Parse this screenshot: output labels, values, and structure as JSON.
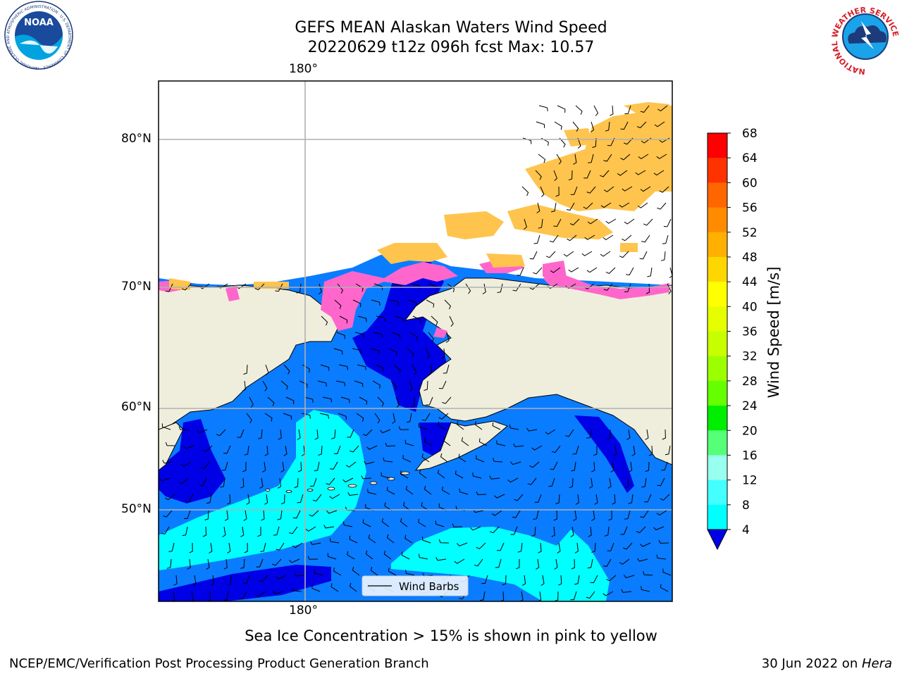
{
  "header": {
    "title_line1": "GEFS MEAN Alaskan Waters Wind Speed",
    "title_line2": "20220629 t12z 096h fcst   Max: 10.57"
  },
  "logos": {
    "left": {
      "name": "noaa-logo",
      "text": "NOAA",
      "ring_text": "NATIONAL OCEANIC AND ATMOSPHERIC ADMINISTRATION · U.S. DEPARTMENT OF COMMERCE"
    },
    "right": {
      "name": "nws-logo",
      "ring_text": "NATIONAL WEATHER SERVICE"
    }
  },
  "map": {
    "lon_labels": [
      "180°"
    ],
    "lat_labels": [
      "80°N",
      "70°N",
      "60°N",
      "50°N"
    ],
    "legend_label": "Wind Barbs",
    "colors": {
      "land": "#efeedc",
      "ocean_4_8": "#0a7cff",
      "ocean_lt4": "#0000e6",
      "ocean_8_12": "#00ffff",
      "ice_pink": "#ff66cc",
      "ice_orange": "#ffc44d",
      "grid": "#b0b0b0"
    }
  },
  "colorbar": {
    "label": "Wind Speed [m/s]",
    "ticks": [
      "68",
      "64",
      "60",
      "56",
      "52",
      "48",
      "44",
      "40",
      "36",
      "32",
      "28",
      "24",
      "20",
      "16",
      "12",
      "8",
      "4"
    ],
    "colors": [
      "#ff0000",
      "#ff3300",
      "#ff6600",
      "#ff8c00",
      "#ffb000",
      "#ffd700",
      "#ffff00",
      "#e6ff00",
      "#c8ff00",
      "#9cff00",
      "#66ff00",
      "#00ee00",
      "#55ff77",
      "#99ffee",
      "#44ffff",
      "#00ffff",
      "#0a7cff"
    ],
    "extend_color": "#0000e6"
  },
  "note": "Sea Ice Concentration > 15% is shown in pink to yellow",
  "footer": {
    "left": "NCEP/EMC/Verification Post Processing Product Generation Branch",
    "right_prefix": "30 Jun 2022 on ",
    "right_machine": "Hera"
  }
}
